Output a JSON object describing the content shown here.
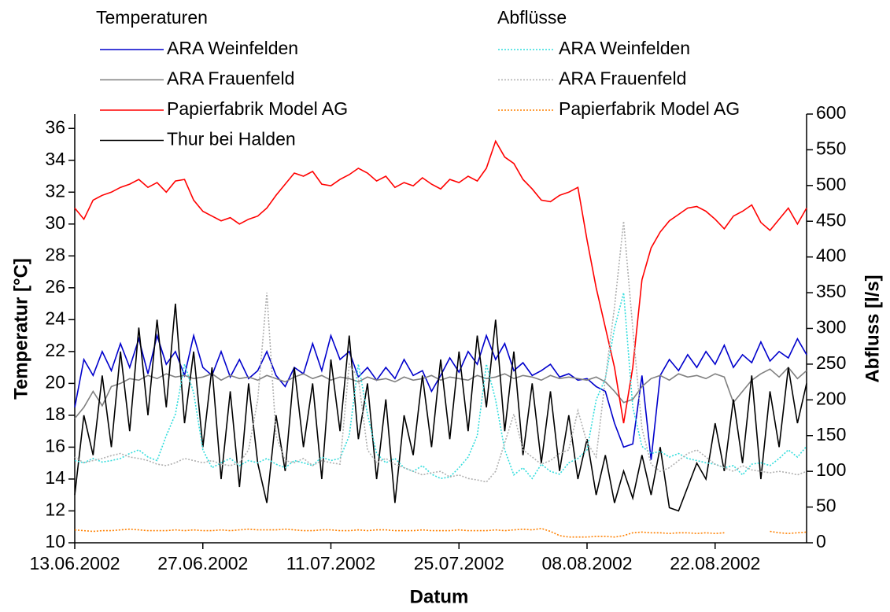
{
  "chart_data": {
    "type": "line",
    "x_label": "Datum",
    "y_label": "Temperatur [°C]",
    "y2_label": "Abfluss [l/s]",
    "legend_titles": [
      "Temperaturen",
      "Abflüsse"
    ],
    "xlim": [
      "2002-06-13",
      "2002-09-01"
    ],
    "xticks": [
      {
        "value": "2002-06-13",
        "label": "13.06.2002"
      },
      {
        "value": "2002-06-27",
        "label": "27.06.2002"
      },
      {
        "value": "2002-07-11",
        "label": "11.07.2002"
      },
      {
        "value": "2002-07-25",
        "label": "25.07.2002"
      },
      {
        "value": "2002-08-08",
        "label": "08.08.2002"
      },
      {
        "value": "2002-08-22",
        "label": "22.08.2002"
      }
    ],
    "ylim": [
      10,
      36.9
    ],
    "yticks": [
      10,
      12,
      14,
      16,
      18,
      20,
      22,
      24,
      26,
      28,
      30,
      32,
      34,
      36
    ],
    "y2lim": [
      0,
      600
    ],
    "y2ticks": [
      0,
      50,
      100,
      150,
      200,
      250,
      300,
      350,
      400,
      450,
      500,
      550,
      600
    ],
    "x": [
      "2002-06-13",
      "2002-06-14",
      "2002-06-15",
      "2002-06-16",
      "2002-06-17",
      "2002-06-18",
      "2002-06-19",
      "2002-06-20",
      "2002-06-21",
      "2002-06-22",
      "2002-06-23",
      "2002-06-24",
      "2002-06-25",
      "2002-06-26",
      "2002-06-27",
      "2002-06-28",
      "2002-06-29",
      "2002-06-30",
      "2002-07-01",
      "2002-07-02",
      "2002-07-03",
      "2002-07-04",
      "2002-07-05",
      "2002-07-06",
      "2002-07-07",
      "2002-07-08",
      "2002-07-09",
      "2002-07-10",
      "2002-07-11",
      "2002-07-12",
      "2002-07-13",
      "2002-07-14",
      "2002-07-15",
      "2002-07-16",
      "2002-07-17",
      "2002-07-18",
      "2002-07-19",
      "2002-07-20",
      "2002-07-21",
      "2002-07-22",
      "2002-07-23",
      "2002-07-24",
      "2002-07-25",
      "2002-07-26",
      "2002-07-27",
      "2002-07-28",
      "2002-07-29",
      "2002-07-30",
      "2002-07-31",
      "2002-08-01",
      "2002-08-02",
      "2002-08-03",
      "2002-08-04",
      "2002-08-05",
      "2002-08-06",
      "2002-08-07",
      "2002-08-08",
      "2002-08-09",
      "2002-08-10",
      "2002-08-11",
      "2002-08-12",
      "2002-08-13",
      "2002-08-14",
      "2002-08-15",
      "2002-08-16",
      "2002-08-17",
      "2002-08-18",
      "2002-08-19",
      "2002-08-20",
      "2002-08-21",
      "2002-08-22",
      "2002-08-23",
      "2002-08-24",
      "2002-08-25",
      "2002-08-26",
      "2002-08-27",
      "2002-08-28",
      "2002-08-29",
      "2002-08-30",
      "2002-08-31",
      "2002-09-01"
    ],
    "series": [
      {
        "name": "ARA Weinfelden",
        "color": "#0000cc",
        "style": "solid",
        "axis": "y",
        "values": [
          18.5,
          21.5,
          20.5,
          22,
          20.8,
          22.5,
          21,
          22.8,
          20.6,
          23,
          21.2,
          22,
          20.5,
          23,
          21,
          20.5,
          22,
          20.4,
          21.5,
          20.3,
          20.8,
          22,
          20.5,
          19.8,
          21,
          20.6,
          22.5,
          20.8,
          23,
          21.5,
          22,
          20.4,
          21,
          20.2,
          21,
          20.3,
          21.5,
          20.5,
          20.8,
          19.5,
          20.5,
          21.6,
          20.7,
          22,
          21.2,
          23,
          21.5,
          22.5,
          20.8,
          21.3,
          20.5,
          20.8,
          21.2,
          20.4,
          20.6,
          20.2,
          20.3,
          19.8,
          19.5,
          17.5,
          16,
          16.2,
          20.5,
          15.2,
          20.5,
          21.5,
          20.8,
          21.8,
          21,
          22,
          21.2,
          22.4,
          21,
          21.8,
          21.3,
          22.6,
          21.4,
          22,
          21.6,
          22.8,
          21.8
        ]
      },
      {
        "name": "ARA Frauenfeld",
        "color": "#808080",
        "style": "solid",
        "axis": "y",
        "values": [
          17.8,
          18.5,
          19.5,
          18.6,
          19.8,
          20,
          20.3,
          20.2,
          20.5,
          20.3,
          20.6,
          20.4,
          20.5,
          20.3,
          20.4,
          20.6,
          20.2,
          20.5,
          20.3,
          20.4,
          20.2,
          20.5,
          20.3,
          20.1,
          20.4,
          20.6,
          20.3,
          20.5,
          20.2,
          20.4,
          20.3,
          20.1,
          20.4,
          20.2,
          20.3,
          20.1,
          20.4,
          20.2,
          20.3,
          20.5,
          20.2,
          20.4,
          20.3,
          20.2,
          20.5,
          20.3,
          20.4,
          20.6,
          20.3,
          20.5,
          20.4,
          20.2,
          20.5,
          20.3,
          20.4,
          20.3,
          20.2,
          20.4,
          20.1,
          19.5,
          18.8,
          19,
          19.8,
          20.3,
          20.5,
          20.2,
          20.6,
          20.4,
          20.5,
          20.3,
          20.6,
          20.4,
          18.8,
          19.5,
          20.2,
          20.6,
          20.9,
          20.4,
          21,
          20.3,
          20.8
        ]
      },
      {
        "name": "Papierfabrik Model AG",
        "color": "#ff0000",
        "style": "solid",
        "axis": "y",
        "values": [
          31,
          30.3,
          31.5,
          31.8,
          32,
          32.3,
          32.5,
          32.8,
          32.3,
          32.6,
          32,
          32.7,
          32.8,
          31.5,
          30.8,
          30.5,
          30.2,
          30.4,
          30,
          30.3,
          30.5,
          31,
          31.8,
          32.5,
          33.2,
          33,
          33.3,
          32.5,
          32.4,
          32.8,
          33.1,
          33.5,
          33.2,
          32.7,
          33,
          32.3,
          32.6,
          32.4,
          32.9,
          32.5,
          32.2,
          32.8,
          32.6,
          33,
          32.7,
          33.5,
          35.2,
          34.2,
          33.8,
          32.8,
          32.2,
          31.5,
          31.4,
          31.8,
          32,
          32.3,
          29,
          26,
          23.5,
          21,
          17.5,
          21,
          26.5,
          28.5,
          29.5,
          30.2,
          30.6,
          31,
          31.1,
          30.8,
          30.3,
          29.7,
          30.5,
          30.8,
          31.2,
          30.1,
          29.6,
          30.3,
          31,
          30,
          31
        ]
      },
      {
        "name": "Thur bei Halden",
        "color": "#000000",
        "style": "solid",
        "axis": "y",
        "values": [
          13,
          18,
          15.5,
          20.5,
          16,
          22,
          17,
          23.5,
          18,
          24,
          18.5,
          25,
          17.5,
          22,
          16,
          21,
          14,
          19.5,
          13.5,
          20,
          15,
          12.5,
          18,
          14.5,
          21,
          16,
          20,
          14,
          21.5,
          17,
          23,
          16.5,
          20,
          14,
          19,
          12.5,
          18,
          15.5,
          20.5,
          16,
          21.5,
          16.5,
          22,
          17,
          23,
          18.5,
          24,
          17,
          22,
          15.5,
          20,
          15,
          19.5,
          14.5,
          18,
          14,
          16.5,
          13,
          15.5,
          12.5,
          14.5,
          12.8,
          15.5,
          13,
          16,
          12.2,
          12,
          13.5,
          15,
          14,
          17.5,
          14.5,
          19,
          15,
          20.5,
          14,
          19.5,
          16,
          21,
          17.5,
          20
        ]
      },
      {
        "name": "ARA Weinfelden",
        "color": "#33dddd",
        "style": "dotted",
        "axis": "y2",
        "values": [
          115,
          112,
          118,
          113,
          115,
          118,
          125,
          130,
          120,
          115,
          150,
          180,
          250,
          210,
          130,
          105,
          112,
          118,
          108,
          115,
          112,
          118,
          110,
          105,
          115,
          112,
          108,
          120,
          115,
          118,
          150,
          250,
          180,
          125,
          112,
          118,
          105,
          100,
          108,
          96,
          90,
          92,
          105,
          120,
          150,
          250,
          200,
          130,
          95,
          105,
          90,
          110,
          100,
          96,
          112,
          118,
          130,
          200,
          230,
          300,
          350,
          190,
          135,
          125,
          128,
          120,
          125,
          118,
          115,
          112,
          110,
          105,
          108,
          95,
          110,
          112,
          108,
          118,
          130,
          120,
          135
        ]
      },
      {
        "name": "ARA Frauenfeld",
        "color": "#b0b0b0",
        "style": "dotted",
        "axis": "y2",
        "values": [
          120,
          112,
          115,
          118,
          122,
          125,
          120,
          118,
          115,
          110,
          108,
          112,
          118,
          115,
          112,
          115,
          110,
          108,
          112,
          130,
          200,
          350,
          150,
          115,
          112,
          118,
          108,
          115,
          112,
          110,
          250,
          230,
          130,
          112,
          118,
          110,
          105,
          100,
          95,
          98,
          100,
          92,
          95,
          90,
          88,
          85,
          100,
          140,
          180,
          130,
          120,
          110,
          115,
          125,
          130,
          185,
          140,
          120,
          230,
          330,
          450,
          300,
          160,
          110,
          100,
          105,
          115,
          125,
          130,
          120,
          110,
          105,
          100,
          108,
          102,
          100,
          98,
          100,
          98,
          95,
          100
        ]
      },
      {
        "name": "Papierfabrik Model AG",
        "color": "#ff8000",
        "style": "dotted",
        "axis": "y2",
        "values": [
          18,
          17,
          16,
          17,
          17,
          18,
          19,
          18,
          17,
          17,
          17,
          18,
          17,
          18,
          17,
          17,
          18,
          17,
          18,
          19,
          18,
          18,
          18,
          19,
          18,
          17,
          17,
          18,
          18,
          17,
          17,
          18,
          17,
          18,
          18,
          17,
          17,
          17,
          18,
          17,
          17,
          17,
          18,
          17,
          17,
          17,
          18,
          17,
          18,
          19,
          18,
          20,
          16,
          10,
          8,
          8,
          8,
          9,
          9,
          8,
          10,
          14,
          15,
          14,
          14,
          13,
          14,
          14,
          13,
          14,
          13,
          14,
          null,
          null,
          null,
          null,
          16,
          14,
          13,
          14,
          15
        ]
      }
    ]
  }
}
